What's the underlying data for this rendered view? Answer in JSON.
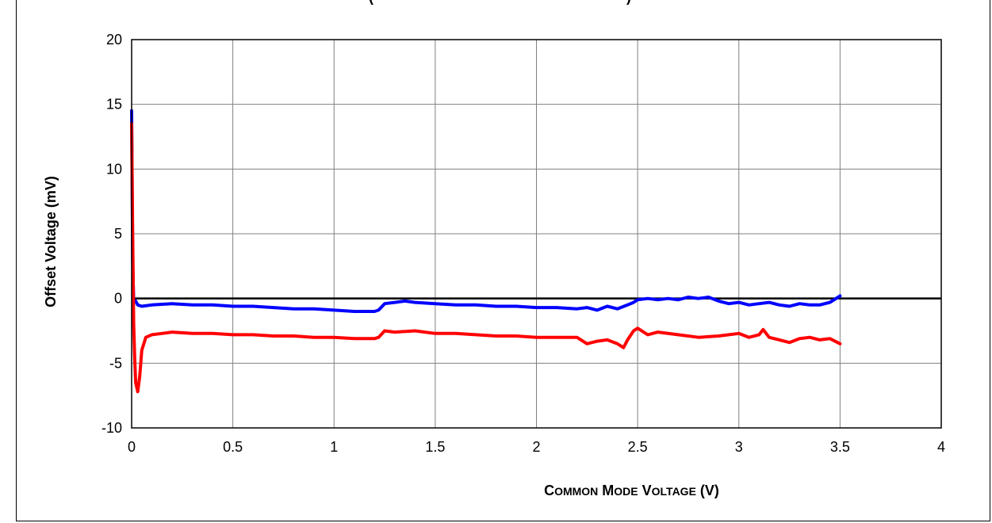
{
  "chart_data": {
    "type": "line",
    "title_fragment": "(",
    "title_fragment_2": ")",
    "xlabel": "Common Mode Voltage (V)",
    "ylabel": "Offset Voltage (mV)",
    "xlim": [
      0,
      4
    ],
    "ylim": [
      -10,
      20
    ],
    "xticks": [
      "0",
      "0.5",
      "1",
      "1.5",
      "2",
      "2.5",
      "3",
      "3.5",
      "4"
    ],
    "yticks": [
      "20",
      "15",
      "10",
      "5",
      "0",
      "-5",
      "-10"
    ],
    "grid": true,
    "legend": "none",
    "series": [
      {
        "color": "#0000ff",
        "x": [
          0.0,
          0.005,
          0.01,
          0.02,
          0.03,
          0.05,
          0.1,
          0.2,
          0.3,
          0.4,
          0.5,
          0.6,
          0.7,
          0.8,
          0.9,
          1.0,
          1.1,
          1.2,
          1.22,
          1.25,
          1.3,
          1.35,
          1.4,
          1.5,
          1.6,
          1.7,
          1.8,
          1.9,
          2.0,
          2.1,
          2.2,
          2.25,
          2.3,
          2.35,
          2.4,
          2.45,
          2.48,
          2.5,
          2.55,
          2.6,
          2.65,
          2.7,
          2.75,
          2.8,
          2.85,
          2.9,
          2.95,
          3.0,
          3.05,
          3.1,
          3.15,
          3.2,
          3.25,
          3.3,
          3.35,
          3.4,
          3.45,
          3.5
        ],
        "y": [
          14.5,
          3.0,
          -0.3,
          -0.2,
          -0.5,
          -0.6,
          -0.5,
          -0.4,
          -0.5,
          -0.5,
          -0.6,
          -0.6,
          -0.7,
          -0.8,
          -0.8,
          -0.9,
          -1.0,
          -1.0,
          -0.9,
          -0.4,
          -0.3,
          -0.2,
          -0.3,
          -0.4,
          -0.5,
          -0.5,
          -0.6,
          -0.6,
          -0.7,
          -0.7,
          -0.8,
          -0.7,
          -0.9,
          -0.6,
          -0.8,
          -0.5,
          -0.3,
          -0.1,
          0.0,
          -0.1,
          0.0,
          -0.1,
          0.1,
          0.0,
          0.1,
          -0.2,
          -0.4,
          -0.3,
          -0.5,
          -0.4,
          -0.3,
          -0.5,
          -0.6,
          -0.4,
          -0.5,
          -0.5,
          -0.3,
          0.2
        ]
      },
      {
        "color": "#ff0000",
        "x": [
          0.0,
          0.005,
          0.01,
          0.015,
          0.02,
          0.03,
          0.04,
          0.05,
          0.07,
          0.1,
          0.15,
          0.2,
          0.3,
          0.4,
          0.5,
          0.6,
          0.7,
          0.8,
          0.9,
          1.0,
          1.1,
          1.2,
          1.22,
          1.25,
          1.3,
          1.4,
          1.5,
          1.6,
          1.7,
          1.8,
          1.9,
          2.0,
          2.1,
          2.2,
          2.25,
          2.3,
          2.35,
          2.4,
          2.43,
          2.45,
          2.48,
          2.5,
          2.55,
          2.6,
          2.7,
          2.8,
          2.9,
          3.0,
          3.05,
          3.1,
          3.12,
          3.15,
          3.2,
          3.25,
          3.3,
          3.35,
          3.4,
          3.45,
          3.5
        ],
        "y": [
          13.5,
          5.0,
          -2.0,
          -4.5,
          -6.5,
          -7.2,
          -6.0,
          -4.0,
          -3.0,
          -2.8,
          -2.7,
          -2.6,
          -2.7,
          -2.7,
          -2.8,
          -2.8,
          -2.9,
          -2.9,
          -3.0,
          -3.0,
          -3.1,
          -3.1,
          -3.0,
          -2.5,
          -2.6,
          -2.5,
          -2.7,
          -2.7,
          -2.8,
          -2.9,
          -2.9,
          -3.0,
          -3.0,
          -3.0,
          -3.5,
          -3.3,
          -3.2,
          -3.5,
          -3.8,
          -3.2,
          -2.5,
          -2.3,
          -2.8,
          -2.6,
          -2.8,
          -3.0,
          -2.9,
          -2.7,
          -3.0,
          -2.8,
          -2.4,
          -3.0,
          -3.2,
          -3.4,
          -3.1,
          -3.0,
          -3.2,
          -3.1,
          -3.5
        ]
      }
    ]
  }
}
